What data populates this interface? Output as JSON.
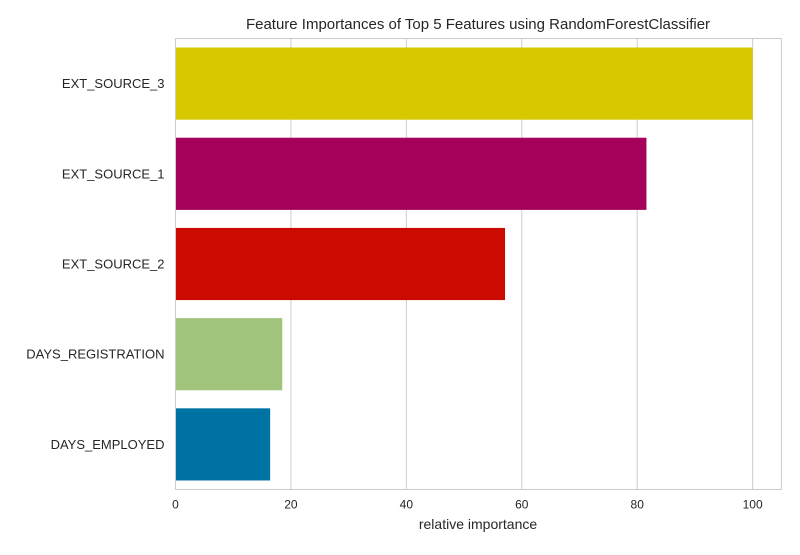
{
  "chart_data": {
    "type": "bar",
    "orientation": "horizontal",
    "title": "Feature Importances of Top 5 Features using RandomForestClassifier",
    "xlabel": "relative importance",
    "ylabel": "",
    "categories": [
      "EXT_SOURCE_3",
      "EXT_SOURCE_1",
      "EXT_SOURCE_2",
      "DAYS_REGISTRATION",
      "DAYS_EMPLOYED"
    ],
    "values": [
      100,
      81.6,
      57.1,
      18.5,
      16.4
    ],
    "bar_colors": [
      "#d8c800",
      "#a5005a",
      "#cc0b00",
      "#a0c47c",
      "#0073a5"
    ],
    "xlim": [
      0,
      105
    ],
    "xticks": [
      0,
      20,
      40,
      60,
      80,
      100
    ],
    "grid": true,
    "legend": "none"
  }
}
